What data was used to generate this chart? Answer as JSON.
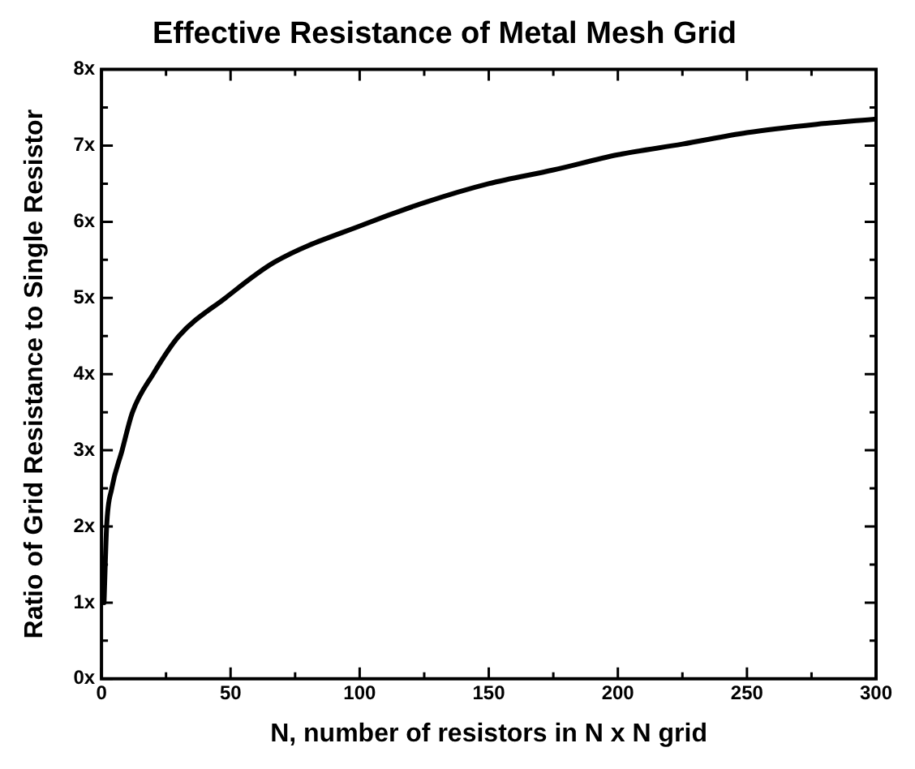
{
  "chart_data": {
    "type": "line",
    "title": "Effective Resistance of Metal Mesh Grid",
    "xlabel": "N, number of resistors in N x N grid",
    "ylabel": "Ratio of Grid Resistance to Single Resistor",
    "x": [
      1,
      2,
      4,
      8,
      12,
      20,
      30,
      48,
      67,
      102,
      125,
      150,
      175,
      200,
      225,
      250,
      277,
      300
    ],
    "series": [
      {
        "color": "#000000",
        "values": [
          1,
          2,
          2.5,
          3,
          3.5,
          4,
          4.5,
          5,
          5.47,
          5.97,
          6.25,
          6.5,
          6.68,
          6.88,
          7.02,
          7.17,
          7.28,
          7.35
        ]
      }
    ],
    "xlim": [
      0,
      300
    ],
    "xticks": [
      0,
      {
        "value": 25,
        "label": null
      },
      50,
      {
        "value": 75,
        "label": null
      },
      100,
      {
        "value": 125,
        "label": null
      },
      150,
      {
        "value": 175,
        "label": null
      },
      200,
      {
        "value": 225,
        "label": null
      },
      250,
      {
        "value": 275,
        "label": null
      },
      300
    ],
    "ylim": [
      0,
      8
    ],
    "yticks": [
      {
        "value": 0,
        "label": "0x"
      },
      {
        "value": 0.5,
        "label": null
      },
      {
        "value": 1,
        "label": "1x"
      },
      {
        "value": 1.5,
        "label": null
      },
      {
        "value": 2,
        "label": "2x"
      },
      {
        "value": 2.5,
        "label": null
      },
      {
        "value": 3,
        "label": "3x"
      },
      {
        "value": 3.5,
        "label": null
      },
      {
        "value": 4,
        "label": "4x"
      },
      {
        "value": 4.5,
        "label": null
      },
      {
        "value": 5,
        "label": "5x"
      },
      {
        "value": 5.5,
        "label": null
      },
      {
        "value": 6,
        "label": "6x"
      },
      {
        "value": 6.5,
        "label": null
      },
      {
        "value": 7,
        "label": "7x"
      },
      {
        "value": 7.5,
        "label": null
      },
      {
        "value": 8,
        "label": "8x"
      }
    ],
    "grid": false,
    "legend": false,
    "marker": "none",
    "line_style": "solid"
  }
}
